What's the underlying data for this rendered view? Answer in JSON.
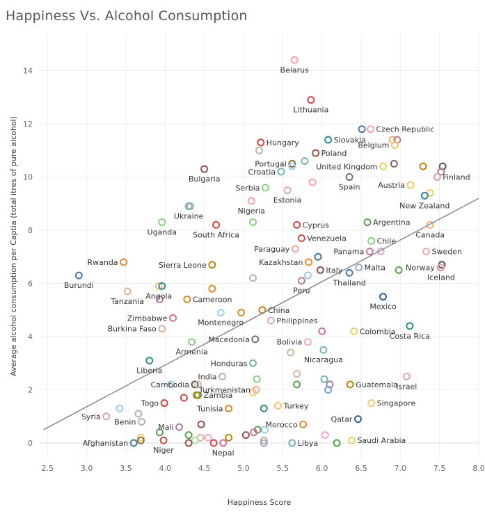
{
  "title": "Happiness Vs. Alcohol Consumption",
  "chart_data": {
    "type": "scatter",
    "title": "Happiness Vs. Alcohol Consumption",
    "xlabel": "Happiness Score",
    "ylabel": "Average alcohol consumption per Captia (total itres of pure alcohol)",
    "xlim": [
      2.4,
      8.0
    ],
    "ylim": [
      -0.6,
      15.4
    ],
    "xticks": [
      "2.5",
      "3.0",
      "3.5",
      "4.0",
      "4.5",
      "5.0",
      "5.5",
      "6.0",
      "6.5",
      "7.0",
      "7.5",
      "8.0"
    ],
    "yticks": [
      "0",
      "2",
      "4",
      "6",
      "8",
      "10",
      "12",
      "14"
    ],
    "grid": true,
    "trend_line": {
      "x": [
        2.45,
        8.0
      ],
      "y": [
        0.5,
        9.2
      ]
    },
    "points": [
      {
        "x": 5.65,
        "y": 14.4,
        "label": "Belarus",
        "color": "#f4a6a6"
      },
      {
        "x": 5.86,
        "y": 12.9,
        "label": "Lithuania",
        "color": "#d64545"
      },
      {
        "x": 6.51,
        "y": 11.8,
        "label": "",
        "color": "#4e79a7"
      },
      {
        "x": 6.62,
        "y": 11.8,
        "label": "Czech Republic",
        "color": "#f4a6a6"
      },
      {
        "x": 6.9,
        "y": 11.4,
        "label": "",
        "color": "#f6b26b"
      },
      {
        "x": 6.96,
        "y": 11.4,
        "label": "",
        "color": "#b07aa1"
      },
      {
        "x": 6.08,
        "y": 11.4,
        "label": "Slovakia",
        "color": "#2e8b8b"
      },
      {
        "x": 5.22,
        "y": 11.3,
        "label": "Hungary",
        "color": "#d64545"
      },
      {
        "x": 5.2,
        "y": 11.0,
        "label": "",
        "color": "#bab0ac"
      },
      {
        "x": 5.92,
        "y": 10.9,
        "label": "Poland",
        "color": "#8c564b"
      },
      {
        "x": 6.93,
        "y": 11.2,
        "label": "Belgium",
        "color": "#f6c26b"
      },
      {
        "x": 5.78,
        "y": 10.6,
        "label": "",
        "color": "#76b7b2"
      },
      {
        "x": 5.62,
        "y": 10.5,
        "label": "Portugal",
        "color": "#8c6d31"
      },
      {
        "x": 5.62,
        "y": 10.4,
        "label": "",
        "color": "#a0cbe8"
      },
      {
        "x": 5.48,
        "y": 10.2,
        "label": "Croatia",
        "color": "#76b7b2"
      },
      {
        "x": 6.78,
        "y": 10.4,
        "label": "United Kingdom",
        "color": "#f1ce63"
      },
      {
        "x": 6.92,
        "y": 10.5,
        "label": "",
        "color": "#79706e"
      },
      {
        "x": 7.29,
        "y": 10.4,
        "label": "",
        "color": "#b8860b"
      },
      {
        "x": 7.54,
        "y": 10.4,
        "label": "",
        "color": "#555555"
      },
      {
        "x": 7.52,
        "y": 10.2,
        "label": "",
        "color": "#b07aa1"
      },
      {
        "x": 7.47,
        "y": 10.0,
        "label": "Finland",
        "color": "#d4a6a6"
      },
      {
        "x": 6.35,
        "y": 10.0,
        "label": "Spain",
        "color": "#79706e"
      },
      {
        "x": 4.5,
        "y": 10.3,
        "label": "Bulgaria",
        "color": "#8c564b"
      },
      {
        "x": 5.88,
        "y": 9.8,
        "label": "",
        "color": "#f4a6a6"
      },
      {
        "x": 5.28,
        "y": 9.6,
        "label": "Serbia",
        "color": "#8cd17d"
      },
      {
        "x": 5.56,
        "y": 9.5,
        "label": "Estonia",
        "color": "#d4a6c8"
      },
      {
        "x": 7.13,
        "y": 9.7,
        "label": "Austria",
        "color": "#f1ce63"
      },
      {
        "x": 7.38,
        "y": 9.4,
        "label": "",
        "color": "#f1ce63"
      },
      {
        "x": 7.31,
        "y": 9.3,
        "label": "New Zealand",
        "color": "#2e8b8b"
      },
      {
        "x": 5.1,
        "y": 9.1,
        "label": "Nigeria",
        "color": "#f4a6a6"
      },
      {
        "x": 4.3,
        "y": 8.9,
        "label": "Ukraine",
        "color": "#9da9b5"
      },
      {
        "x": 4.32,
        "y": 8.9,
        "label": "",
        "color": "#76b7b2"
      },
      {
        "x": 3.96,
        "y": 8.3,
        "label": "Uganda",
        "color": "#8cd17d"
      },
      {
        "x": 5.12,
        "y": 8.3,
        "label": "",
        "color": "#8cd17d"
      },
      {
        "x": 4.65,
        "y": 8.2,
        "label": "South Africa",
        "color": "#d64545"
      },
      {
        "x": 5.68,
        "y": 8.2,
        "label": "Cyprus",
        "color": "#d64545"
      },
      {
        "x": 6.58,
        "y": 8.3,
        "label": "Argentina",
        "color": "#59a14f"
      },
      {
        "x": 7.38,
        "y": 8.2,
        "label": "Canada",
        "color": "#f6b26b"
      },
      {
        "x": 5.74,
        "y": 7.7,
        "label": "Venezuela",
        "color": "#d64545"
      },
      {
        "x": 6.63,
        "y": 7.6,
        "label": "Chile",
        "color": "#8cd17d"
      },
      {
        "x": 5.66,
        "y": 7.3,
        "label": "Paraguay",
        "color": "#f4a6a6"
      },
      {
        "x": 6.61,
        "y": 7.2,
        "label": "Panama",
        "color": "#d37295"
      },
      {
        "x": 6.75,
        "y": 7.2,
        "label": "",
        "color": "#d4a6c8"
      },
      {
        "x": 7.33,
        "y": 7.2,
        "label": "Sweden",
        "color": "#f4a6a6"
      },
      {
        "x": 3.47,
        "y": 6.8,
        "label": "Rwanda",
        "color": "#e08a2e"
      },
      {
        "x": 5.83,
        "y": 6.8,
        "label": "Kazakhstan",
        "color": "#f28e2b"
      },
      {
        "x": 5.95,
        "y": 7.0,
        "label": "",
        "color": "#4e79a7"
      },
      {
        "x": 4.6,
        "y": 6.7,
        "label": "Sierra Leone",
        "color": "#b8860b"
      },
      {
        "x": 7.53,
        "y": 6.7,
        "label": "",
        "color": "#555555"
      },
      {
        "x": 7.51,
        "y": 6.6,
        "label": "Norway",
        "color": "#f4a6a6"
      },
      {
        "x": 6.47,
        "y": 6.6,
        "label": "Malta",
        "color": "#9da9b5"
      },
      {
        "x": 6.98,
        "y": 6.5,
        "label": "",
        "color": "#59a14f"
      },
      {
        "x": 5.98,
        "y": 6.5,
        "label": "Italy",
        "color": "#8c564b"
      },
      {
        "x": 6.35,
        "y": 6.4,
        "label": "Thailand",
        "color": "#4e79a7"
      },
      {
        "x": 7.52,
        "y": 6.6,
        "label": "Iceland",
        "color": "#d4a6a6"
      },
      {
        "x": 2.9,
        "y": 6.3,
        "label": "Burundi",
        "color": "#4e79a7"
      },
      {
        "x": 5.82,
        "y": 6.3,
        "label": "",
        "color": "#a0cbe8"
      },
      {
        "x": 5.12,
        "y": 6.2,
        "label": "",
        "color": "#bab0ac"
      },
      {
        "x": 3.92,
        "y": 5.9,
        "label": "Angola",
        "color": "#f6c26b"
      },
      {
        "x": 3.96,
        "y": 5.9,
        "label": "",
        "color": "#2e8b8b"
      },
      {
        "x": 5.74,
        "y": 6.1,
        "label": "Peru",
        "color": "#b07aa1"
      },
      {
        "x": 4.6,
        "y": 5.8,
        "label": "",
        "color": "#e08a2e"
      },
      {
        "x": 3.52,
        "y": 5.7,
        "label": "Tanzania",
        "color": "#d4b5a0"
      },
      {
        "x": 6.78,
        "y": 5.5,
        "label": "Mexico",
        "color": "#2e5f8a"
      },
      {
        "x": 3.93,
        "y": 5.4,
        "label": "",
        "color": "#b07aa1"
      },
      {
        "x": 4.28,
        "y": 5.4,
        "label": "Cameroon",
        "color": "#e08a2e"
      },
      {
        "x": 5.24,
        "y": 5.0,
        "label": "China",
        "color": "#b8860b"
      },
      {
        "x": 4.97,
        "y": 4.9,
        "label": "",
        "color": "#e08a2e"
      },
      {
        "x": 4.71,
        "y": 4.9,
        "label": "Montenegro",
        "color": "#a0cbe8"
      },
      {
        "x": 4.1,
        "y": 4.7,
        "label": "Zimbabwe",
        "color": "#d37295"
      },
      {
        "x": 5.35,
        "y": 4.6,
        "label": "Philippines",
        "color": "#d4a6c8"
      },
      {
        "x": 3.96,
        "y": 4.3,
        "label": "Burkina Faso",
        "color": "#d4b5a0"
      },
      {
        "x": 6.0,
        "y": 4.2,
        "label": "",
        "color": "#d37295"
      },
      {
        "x": 6.41,
        "y": 4.2,
        "label": "Colombia",
        "color": "#f1ce63"
      },
      {
        "x": 7.12,
        "y": 4.4,
        "label": "Costa Rica",
        "color": "#2e8b8b"
      },
      {
        "x": 5.15,
        "y": 3.9,
        "label": "Macedonia",
        "color": "#79706e"
      },
      {
        "x": 4.34,
        "y": 3.8,
        "label": "Armenia",
        "color": "#8cd17d"
      },
      {
        "x": 5.82,
        "y": 3.8,
        "label": "Bolivia",
        "color": "#f4a6c8"
      },
      {
        "x": 5.6,
        "y": 3.4,
        "label": "",
        "color": "#d4b5a0"
      },
      {
        "x": 6.02,
        "y": 3.5,
        "label": "Nicaragua",
        "color": "#76b7b2"
      },
      {
        "x": 3.8,
        "y": 3.1,
        "label": "Liberia",
        "color": "#2e8b8b"
      },
      {
        "x": 5.12,
        "y": 3.0,
        "label": "Honduras",
        "color": "#76b7b2"
      },
      {
        "x": 4.73,
        "y": 2.5,
        "label": "India",
        "color": "#bab0ac"
      },
      {
        "x": 5.68,
        "y": 2.6,
        "label": "",
        "color": "#d4b5a0"
      },
      {
        "x": 6.03,
        "y": 2.4,
        "label": "",
        "color": "#76b7b2"
      },
      {
        "x": 6.1,
        "y": 2.2,
        "label": "",
        "color": "#b07aa1"
      },
      {
        "x": 6.08,
        "y": 2.0,
        "label": "",
        "color": "#6fa3d6"
      },
      {
        "x": 6.36,
        "y": 2.2,
        "label": "Guatemala",
        "color": "#b8860b"
      },
      {
        "x": 7.08,
        "y": 2.5,
        "label": "Israel",
        "color": "#d4a6c8"
      },
      {
        "x": 5.17,
        "y": 2.4,
        "label": "",
        "color": "#8cd17d"
      },
      {
        "x": 4.38,
        "y": 2.2,
        "label": "Cambodia",
        "color": "#555555"
      },
      {
        "x": 4.42,
        "y": 2.2,
        "label": "",
        "color": "#d4b5a0"
      },
      {
        "x": 4.08,
        "y": 2.2,
        "label": "",
        "color": "#a0cbe8"
      },
      {
        "x": 5.68,
        "y": 2.2,
        "label": "",
        "color": "#59a14f"
      },
      {
        "x": 5.16,
        "y": 2.0,
        "label": "Turkmenistan",
        "color": "#f4a6a6"
      },
      {
        "x": 5.12,
        "y": 1.9,
        "label": "",
        "color": "#f1ce63"
      },
      {
        "x": 4.42,
        "y": 1.8,
        "label": "Zambia",
        "color": "#59a14f"
      },
      {
        "x": 4.4,
        "y": 1.8,
        "label": "",
        "color": "#b8860b"
      },
      {
        "x": 4.24,
        "y": 1.7,
        "label": "",
        "color": "#d64545"
      },
      {
        "x": 3.99,
        "y": 1.5,
        "label": "Togo",
        "color": "#d64545"
      },
      {
        "x": 6.63,
        "y": 1.5,
        "label": "Singapore",
        "color": "#f1ce63"
      },
      {
        "x": 5.44,
        "y": 1.4,
        "label": "Turkey",
        "color": "#f6c26b"
      },
      {
        "x": 5.26,
        "y": 1.3,
        "label": "",
        "color": "#2e8b8b"
      },
      {
        "x": 4.81,
        "y": 1.3,
        "label": "Tunisia",
        "color": "#e08a2e"
      },
      {
        "x": 3.66,
        "y": 1.1,
        "label": "",
        "color": "#bab0ac"
      },
      {
        "x": 3.42,
        "y": 1.3,
        "label": "",
        "color": "#a0cbe8"
      },
      {
        "x": 3.25,
        "y": 1.0,
        "label": "Syria",
        "color": "#d4a6c8"
      },
      {
        "x": 3.7,
        "y": 0.8,
        "label": "Benin",
        "color": "#bab0ac"
      },
      {
        "x": 4.18,
        "y": 0.6,
        "label": "Mali",
        "color": "#b07aa1"
      },
      {
        "x": 4.46,
        "y": 0.7,
        "label": "",
        "color": "#8c564b"
      },
      {
        "x": 5.76,
        "y": 0.7,
        "label": "Morocco",
        "color": "#e08a2e"
      },
      {
        "x": 6.46,
        "y": 0.9,
        "label": "Qatar",
        "color": "#2e5f8a"
      },
      {
        "x": 5.27,
        "y": 0.5,
        "label": "",
        "color": "#a0cbe8"
      },
      {
        "x": 5.18,
        "y": 0.5,
        "label": "",
        "color": "#59a14f"
      },
      {
        "x": 5.13,
        "y": 0.4,
        "label": "",
        "color": "#d37295"
      },
      {
        "x": 5.03,
        "y": 0.3,
        "label": "",
        "color": "#8c564b"
      },
      {
        "x": 3.93,
        "y": 0.4,
        "label": "",
        "color": "#59a14f"
      },
      {
        "x": 3.69,
        "y": 0.2,
        "label": "",
        "color": "#f1ce63"
      },
      {
        "x": 4.3,
        "y": 0.3,
        "label": "",
        "color": "#59a14f"
      },
      {
        "x": 4.45,
        "y": 0.2,
        "label": "",
        "color": "#d4b5a0"
      },
      {
        "x": 4.55,
        "y": 0.2,
        "label": "",
        "color": "#f4a6c8"
      },
      {
        "x": 4.38,
        "y": 0.1,
        "label": "",
        "color": "#a0e0a0"
      },
      {
        "x": 4.81,
        "y": 0.2,
        "label": "",
        "color": "#b8860b"
      },
      {
        "x": 6.04,
        "y": 0.3,
        "label": "",
        "color": "#f4a6c8"
      },
      {
        "x": 5.26,
        "y": 0.1,
        "label": "",
        "color": "#bab0ac"
      },
      {
        "x": 6.38,
        "y": 0.1,
        "label": "Saudi Arabia",
        "color": "#f1ce63"
      },
      {
        "x": 3.69,
        "y": 0.1,
        "label": "",
        "color": "#8c6d31"
      },
      {
        "x": 3.6,
        "y": 0.0,
        "label": "Afghanistan",
        "color": "#4e79a7"
      },
      {
        "x": 3.98,
        "y": 0.1,
        "label": "Niger",
        "color": "#d64545"
      },
      {
        "x": 4.3,
        "y": 0.0,
        "label": "",
        "color": "#8c564b"
      },
      {
        "x": 4.62,
        "y": 0.0,
        "label": "",
        "color": "#d64545"
      },
      {
        "x": 4.74,
        "y": 0.0,
        "label": "Nepal",
        "color": "#d37295"
      },
      {
        "x": 5.26,
        "y": 0.0,
        "label": "",
        "color": "#9da9b5"
      },
      {
        "x": 5.62,
        "y": 0.0,
        "label": "Libya",
        "color": "#76b7b2"
      },
      {
        "x": 6.19,
        "y": 0.0,
        "label": "",
        "color": "#59a14f"
      }
    ]
  }
}
